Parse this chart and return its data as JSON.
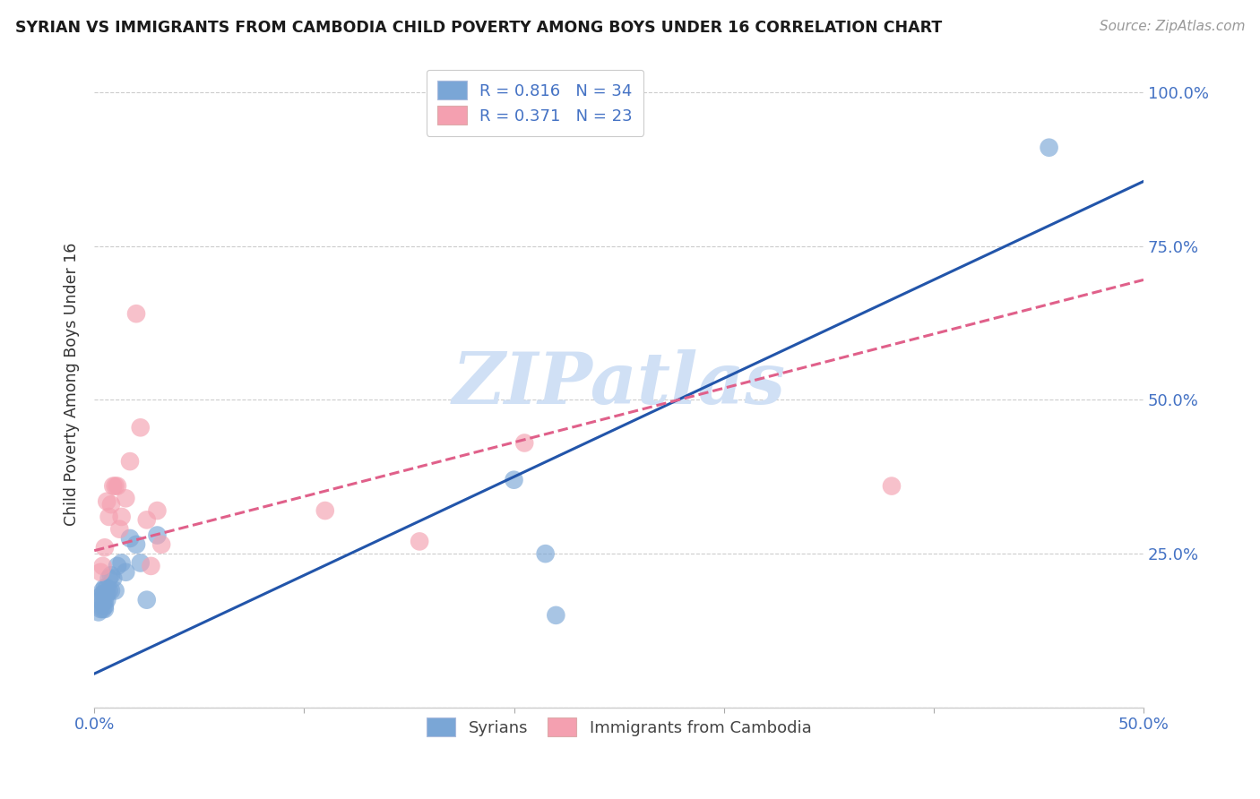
{
  "title": "SYRIAN VS IMMIGRANTS FROM CAMBODIA CHILD POVERTY AMONG BOYS UNDER 16 CORRELATION CHART",
  "source": "Source: ZipAtlas.com",
  "ylabel": "Child Poverty Among Boys Under 16",
  "xlim": [
    0.0,
    0.5
  ],
  "ylim": [
    0.0,
    1.05
  ],
  "xticks": [
    0.0,
    0.1,
    0.2,
    0.3,
    0.4,
    0.5
  ],
  "xticklabels": [
    "0.0%",
    "",
    "",
    "",
    "",
    "50.0%"
  ],
  "ytick_positions": [
    0.0,
    0.25,
    0.5,
    0.75,
    1.0
  ],
  "yticklabels_right": [
    "",
    "25.0%",
    "50.0%",
    "75.0%",
    "100.0%"
  ],
  "syrian_color": "#7aa6d6",
  "cambodia_color": "#f4a0b0",
  "syrian_line_color": "#2255aa",
  "cambodia_line_color": "#e0608a",
  "watermark": "ZIPatlas",
  "watermark_color": "#d0e0f5",
  "legend_color": "#4472c4",
  "tick_color": "#4472c4",
  "grid_color": "#cccccc",
  "background_color": "#ffffff",
  "syrian_x": [
    0.002,
    0.003,
    0.003,
    0.003,
    0.004,
    0.004,
    0.004,
    0.004,
    0.005,
    0.005,
    0.005,
    0.005,
    0.005,
    0.006,
    0.006,
    0.006,
    0.007,
    0.007,
    0.008,
    0.008,
    0.009,
    0.01,
    0.011,
    0.013,
    0.015,
    0.017,
    0.02,
    0.022,
    0.025,
    0.03,
    0.2,
    0.215,
    0.22,
    0.455
  ],
  "syrian_y": [
    0.155,
    0.16,
    0.175,
    0.18,
    0.16,
    0.17,
    0.185,
    0.19,
    0.16,
    0.165,
    0.175,
    0.185,
    0.195,
    0.175,
    0.185,
    0.195,
    0.19,
    0.21,
    0.19,
    0.215,
    0.21,
    0.19,
    0.23,
    0.235,
    0.22,
    0.275,
    0.265,
    0.235,
    0.175,
    0.28,
    0.37,
    0.25,
    0.15,
    0.91
  ],
  "cambodia_x": [
    0.003,
    0.004,
    0.005,
    0.006,
    0.007,
    0.008,
    0.009,
    0.01,
    0.011,
    0.012,
    0.013,
    0.015,
    0.017,
    0.02,
    0.022,
    0.025,
    0.027,
    0.03,
    0.032,
    0.11,
    0.155,
    0.205,
    0.38
  ],
  "cambodia_y": [
    0.22,
    0.23,
    0.26,
    0.335,
    0.31,
    0.33,
    0.36,
    0.36,
    0.36,
    0.29,
    0.31,
    0.34,
    0.4,
    0.64,
    0.455,
    0.305,
    0.23,
    0.32,
    0.265,
    0.32,
    0.27,
    0.43,
    0.36
  ],
  "syrian_line_x": [
    0.0,
    0.5
  ],
  "syrian_line_y": [
    0.055,
    0.855
  ],
  "cambodia_line_x": [
    0.0,
    0.5
  ],
  "cambodia_line_y": [
    0.255,
    0.695
  ]
}
